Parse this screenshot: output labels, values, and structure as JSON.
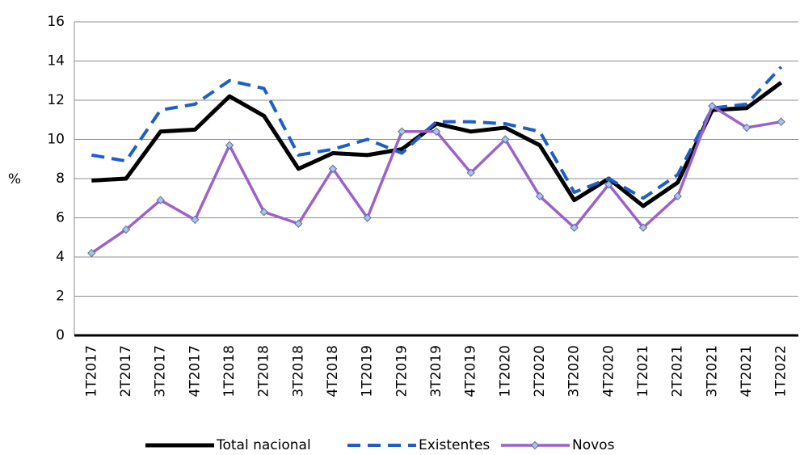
{
  "chart_data": {
    "type": "line",
    "y_label": "%",
    "categories": [
      "1T2017",
      "2T2017",
      "3T2017",
      "4T2017",
      "1T2018",
      "2T2018",
      "3T2018",
      "4T2018",
      "1T2019",
      "2T2019",
      "3T2019",
      "4T2019",
      "1T2020",
      "2T2020",
      "3T2020",
      "4T2020",
      "1T2021",
      "2T2021",
      "3T2021",
      "4T2021",
      "1T2022"
    ],
    "series": [
      {
        "name": "Total nacional",
        "color": "#000000",
        "style": "solid",
        "marker": "none",
        "values": [
          7.9,
          8.0,
          10.4,
          10.5,
          12.2,
          11.2,
          8.5,
          9.3,
          9.2,
          9.5,
          10.8,
          10.4,
          10.6,
          9.7,
          6.9,
          8.0,
          6.6,
          7.8,
          11.5,
          11.6,
          12.9
        ]
      },
      {
        "name": "Existentes",
        "color": "#1f5fc4",
        "style": "dashed",
        "marker": "none",
        "values": [
          9.2,
          8.9,
          11.5,
          11.8,
          13.0,
          12.6,
          9.2,
          9.5,
          10.0,
          9.3,
          10.9,
          10.9,
          10.8,
          10.4,
          7.3,
          8.0,
          7.0,
          8.2,
          11.6,
          11.8,
          13.7
        ]
      },
      {
        "name": "Novos",
        "color": "#9b62c8",
        "style": "solid",
        "marker": "diamond",
        "values": [
          4.2,
          5.4,
          6.9,
          5.9,
          9.7,
          6.3,
          5.7,
          8.5,
          6.0,
          10.4,
          10.4,
          8.3,
          10.0,
          7.1,
          5.5,
          7.7,
          5.5,
          7.1,
          11.7,
          10.6,
          10.9
        ]
      }
    ],
    "ylim": [
      0,
      16
    ],
    "yticks": [
      0,
      2,
      4,
      6,
      8,
      10,
      12,
      14,
      16
    ],
    "grid": true,
    "legend": "bottom"
  }
}
